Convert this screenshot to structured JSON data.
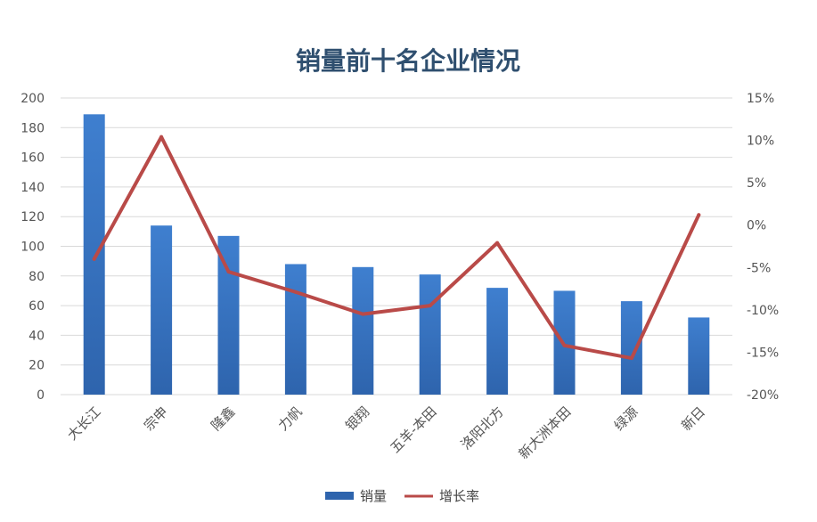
{
  "chart_data": {
    "type": "bar",
    "title": "销量前十名企业情况",
    "categories": [
      "大长江",
      "宗申",
      "隆鑫",
      "力帆",
      "银翔",
      "五羊-本田",
      "洛阳北方",
      "新大洲本田",
      "绿源",
      "新日"
    ],
    "series": [
      {
        "name": "销量",
        "type": "bar",
        "axis": "left",
        "values": [
          189,
          114,
          107,
          88,
          86,
          81,
          72,
          70,
          63,
          52
        ]
      },
      {
        "name": "增长率",
        "type": "line",
        "axis": "right",
        "values": [
          -4.0,
          10.4,
          -5.5,
          -7.9,
          -10.5,
          -9.5,
          -2.1,
          -14.2,
          -15.7,
          1.2
        ]
      }
    ],
    "y_left": {
      "ylim": [
        0,
        200
      ],
      "ticks": [
        "0",
        "20",
        "40",
        "60",
        "80",
        "100",
        "120",
        "140",
        "160",
        "180",
        "200"
      ]
    },
    "y_right": {
      "ylim": [
        -20,
        15
      ],
      "ticks": [
        "-20%",
        "-15%",
        "-10%",
        "-5%",
        "0%",
        "5%",
        "10%",
        "15%"
      ]
    },
    "grid": true,
    "legend": "bottom",
    "colors": {
      "bar": "#2e64ad",
      "bar_light": "#3f7fcf",
      "line": "#b94a48",
      "title": "#2f4f6f"
    }
  }
}
